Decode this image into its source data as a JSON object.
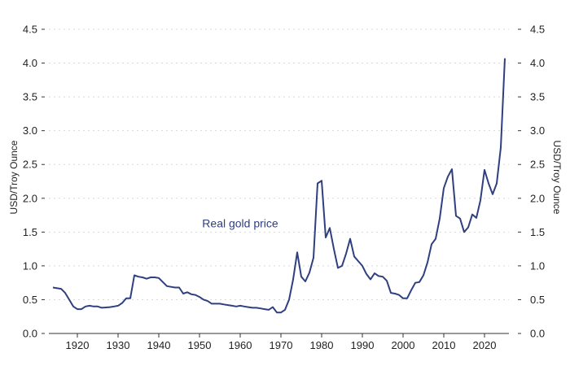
{
  "chart_data": {
    "type": "line",
    "title": "",
    "xlabel": "",
    "ylabel": "USD/Troy Ounce",
    "ylabel_right": "USD/Troy Ounce",
    "xlim": [
      1913,
      2026
    ],
    "ylim": [
      0,
      4.5
    ],
    "x_ticks": [
      1920,
      1930,
      1940,
      1950,
      1960,
      1970,
      1980,
      1990,
      2000,
      2010,
      2020
    ],
    "y_ticks": [
      0.0,
      0.5,
      1.0,
      1.5,
      2.0,
      2.5,
      3.0,
      3.5,
      4.0,
      4.5
    ],
    "grid": true,
    "annotations": [
      {
        "text": "Real gold price",
        "x": 1960,
        "y": 1.63
      }
    ],
    "series": [
      {
        "color": "#2f3f7f",
        "x": [
          1914,
          1916,
          1917,
          1918,
          1919,
          1920,
          1921,
          1922,
          1923,
          1924,
          1925,
          1926,
          1928,
          1929,
          1930,
          1931,
          1932,
          1933,
          1934,
          1935,
          1936,
          1937,
          1938,
          1939,
          1940,
          1941,
          1942,
          1943,
          1944,
          1945,
          1946,
          1947,
          1948,
          1949,
          1950,
          1951,
          1952,
          1953,
          1954,
          1955,
          1956,
          1957,
          1958,
          1959,
          1960,
          1961,
          1962,
          1963,
          1964,
          1965,
          1966,
          1967,
          1968,
          1969,
          1970,
          1971,
          1972,
          1973,
          1974,
          1975,
          1976,
          1977,
          1978,
          1979,
          1980,
          1981,
          1982,
          1983,
          1984,
          1985,
          1986,
          1987,
          1988,
          1989,
          1990,
          1991,
          1992,
          1993,
          1994,
          1995,
          1996,
          1997,
          1998,
          1999,
          2000,
          2001,
          2002,
          2003,
          2004,
          2005,
          2006,
          2007,
          2008,
          2009,
          2010,
          2011,
          2012,
          2013,
          2014,
          2015,
          2016,
          2017,
          2018,
          2019,
          2020,
          2021,
          2022,
          2023,
          2024,
          2025
        ],
        "values": [
          0.68,
          0.66,
          0.6,
          0.5,
          0.4,
          0.36,
          0.36,
          0.4,
          0.41,
          0.4,
          0.4,
          0.38,
          0.39,
          0.4,
          0.41,
          0.45,
          0.52,
          0.52,
          0.86,
          0.84,
          0.83,
          0.81,
          0.83,
          0.83,
          0.82,
          0.76,
          0.7,
          0.69,
          0.68,
          0.68,
          0.59,
          0.61,
          0.58,
          0.57,
          0.54,
          0.5,
          0.48,
          0.44,
          0.44,
          0.44,
          0.43,
          0.42,
          0.41,
          0.4,
          0.41,
          0.4,
          0.39,
          0.38,
          0.38,
          0.37,
          0.36,
          0.35,
          0.39,
          0.31,
          0.31,
          0.35,
          0.5,
          0.8,
          1.2,
          0.84,
          0.77,
          0.9,
          1.12,
          2.22,
          2.26,
          1.42,
          1.56,
          1.25,
          0.97,
          1.0,
          1.18,
          1.4,
          1.14,
          1.07,
          1.0,
          0.88,
          0.8,
          0.89,
          0.85,
          0.84,
          0.78,
          0.6,
          0.59,
          0.57,
          0.52,
          0.52,
          0.64,
          0.75,
          0.76,
          0.86,
          1.05,
          1.32,
          1.4,
          1.7,
          2.15,
          2.32,
          2.43,
          1.74,
          1.7,
          1.5,
          1.57,
          1.76,
          1.71,
          1.97,
          2.42,
          2.22,
          2.06,
          2.22,
          2.75,
          4.07
        ]
      }
    ]
  }
}
